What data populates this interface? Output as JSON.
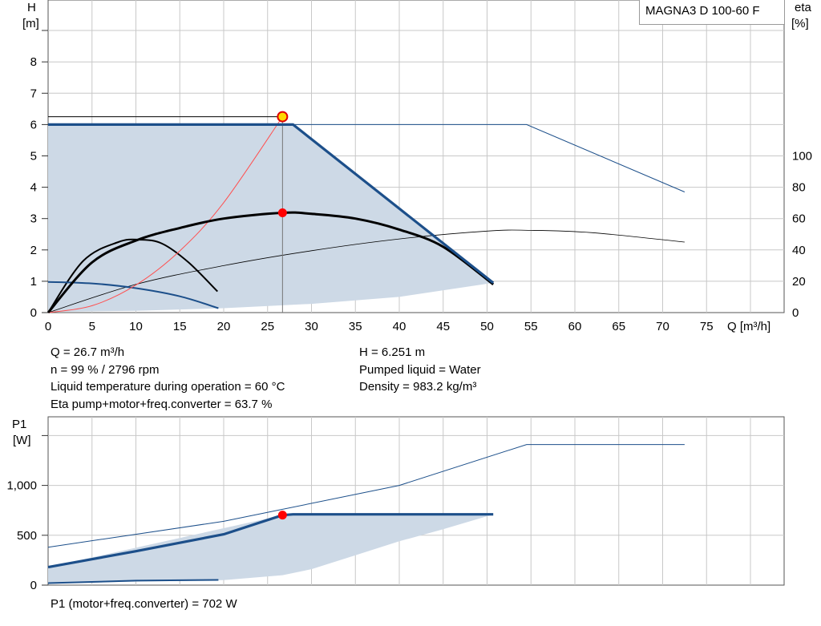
{
  "model_label": "MAGNA3 D 100-60 F",
  "info_left": [
    "Q = 26.7 m³/h",
    "n = 99 % / 2796 rpm",
    "Liquid temperature during operation = 60 °C",
    "Eta pump+motor+freq.converter = 63.7 %"
  ],
  "info_right": [
    "H = 6.251 m",
    "Pumped liquid = Water",
    "Density = 983.2 kg/m³"
  ],
  "bottom_info": "P1 (motor+freq.converter) = 702 W",
  "colors": {
    "primary": "#1c4f8a",
    "area": "#cdd9e6",
    "system_curve": "#ff5050",
    "duty_point": "#ff0000",
    "marker_fill": "#ffd700",
    "grid": "#c8c8c8"
  },
  "chart_data": [
    {
      "type": "line",
      "name": "head-and-efficiency",
      "xlabel": "Q [m³/h]",
      "ylabel": "H\n[m]",
      "y2label": "eta\n[%]",
      "xlim": [
        0,
        80
      ],
      "ylim": [
        0,
        10
      ],
      "y2lim": [
        0,
        200
      ],
      "xticks": [
        0,
        5,
        10,
        15,
        20,
        25,
        30,
        35,
        40,
        45,
        50,
        55,
        60,
        65,
        70,
        75
      ],
      "yticks": [
        0,
        1,
        2,
        3,
        4,
        5,
        6,
        7,
        8
      ],
      "y2ticks": [
        0,
        20,
        40,
        60,
        80,
        100
      ],
      "grid": true,
      "head_envelope": {
        "x": [
          0,
          27.9,
          50.7,
          50.7,
          40,
          30,
          20,
          10,
          0
        ],
        "y": [
          6.0,
          6.0,
          0.95,
          0.95,
          0.5,
          0.28,
          0.14,
          0.06,
          0.02
        ]
      },
      "max_head_curve": {
        "x": [
          0,
          27.9,
          50.7
        ],
        "y": [
          6.0,
          6.0,
          0.95
        ]
      },
      "max_head_extension": {
        "x": [
          27.9,
          54.5,
          72.5
        ],
        "y": [
          6.0,
          6.0,
          3.85
        ]
      },
      "min_head_curve": {
        "x": [
          0,
          5,
          10,
          15,
          19.4
        ],
        "y": [
          0.98,
          0.93,
          0.78,
          0.52,
          0.14
        ]
      },
      "duty_line": {
        "x": [
          0,
          26.7,
          26.7
        ],
        "y": [
          6.25,
          6.25,
          0
        ]
      },
      "system_curve": {
        "x": [
          0,
          5,
          10,
          15,
          20,
          26.7
        ],
        "y": [
          0,
          0.22,
          0.88,
          1.97,
          3.51,
          6.25
        ]
      },
      "duty_point": {
        "x": 26.7,
        "y": 6.251
      },
      "eta_curve": {
        "x": [
          0,
          5,
          10,
          15,
          20,
          26.7,
          30,
          35,
          40,
          45,
          50.7
        ],
        "y": [
          0,
          32,
          46,
          54,
          60,
          63.7,
          63,
          60,
          53,
          42,
          18
        ]
      },
      "eta_point": {
        "x": 26.7,
        "eta": 63.7
      },
      "eta_min_curve": {
        "x": [
          0,
          4,
          8,
          10.5,
          13,
          16,
          19.3
        ],
        "y": [
          0,
          33,
          45,
          46.5,
          44,
          32,
          13.5
        ]
      },
      "eta_extension": {
        "x": [
          0,
          10,
          20,
          30,
          40,
          50,
          55,
          62,
          72.5
        ],
        "y": [
          0,
          18,
          30,
          39.5,
          47,
          52,
          52.5,
          51,
          45
        ]
      }
    },
    {
      "type": "line",
      "name": "power",
      "xlabel": "",
      "ylabel": "P1\n[W]",
      "xlim": [
        0,
        80
      ],
      "ylim": [
        0,
        1500
      ],
      "yticks": [
        0,
        500,
        1000
      ],
      "ytick_labels": [
        "0",
        "500",
        "1,000"
      ],
      "grid": true,
      "power_envelope": {
        "x": [
          0,
          26.7,
          27.9,
          50.7,
          45,
          40,
          35,
          30,
          26.7,
          20,
          0
        ],
        "y": [
          180,
          702,
          710,
          710,
          560,
          440,
          300,
          160,
          100,
          50,
          20
        ]
      },
      "max_power_curve": {
        "x": [
          0,
          10,
          20,
          26.7,
          27.9,
          50.7
        ],
        "y": [
          180,
          340,
          510,
          702,
          710,
          710
        ]
      },
      "min_power_curve": {
        "x": [
          0,
          10,
          19.4
        ],
        "y": [
          20,
          45,
          52
        ]
      },
      "power_extension": {
        "x": [
          0,
          20,
          40,
          54.5,
          72.5
        ],
        "y": [
          380,
          640,
          1000,
          1410,
          1410
        ]
      },
      "duty_point": {
        "x": 26.7,
        "y": 702
      }
    }
  ]
}
